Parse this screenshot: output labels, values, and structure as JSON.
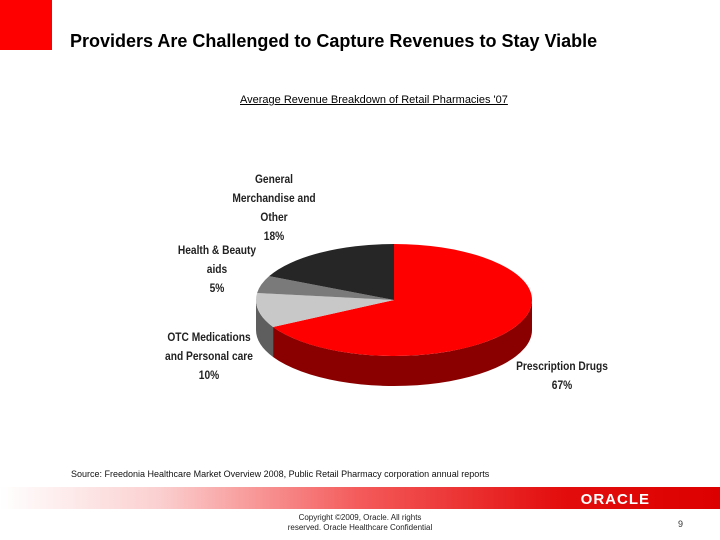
{
  "slide": {
    "title": "Providers Are Challenged to Capture Revenues to Stay Viable",
    "source": "Source: Freedonia Healthcare Market Overview 2008, Public Retail Pharmacy corporation annual reports",
    "copyright_line1": "Copyright ©2009, Oracle. All rights",
    "copyright_line2": "reserved. Oracle Healthcare Confidential",
    "logo_text": "ORACLE",
    "page_number": "9"
  },
  "chart_data": {
    "type": "pie",
    "title": "Average Revenue Breakdown of Retail Pharmacies '07",
    "slices": [
      {
        "label_lines": [
          "Prescription Drugs"
        ],
        "value_label": "67%",
        "value": 67,
        "color": "#ff0000",
        "side_color": "#8a0000"
      },
      {
        "label_lines": [
          "OTC Medications",
          "and Personal care"
        ],
        "value_label": "10%",
        "value": 10,
        "color": "#c8c8c8",
        "side_color": "#5e5e5e"
      },
      {
        "label_lines": [
          "Health & Beauty",
          "aids"
        ],
        "value_label": "5%",
        "value": 5,
        "color": "#7a7a7a",
        "side_color": "#3a3a3a"
      },
      {
        "label_lines": [
          "General",
          "Merchandise and",
          "Other"
        ],
        "value_label": "18%",
        "value": 18,
        "color": "#262626",
        "side_color": "#111111"
      }
    ]
  }
}
